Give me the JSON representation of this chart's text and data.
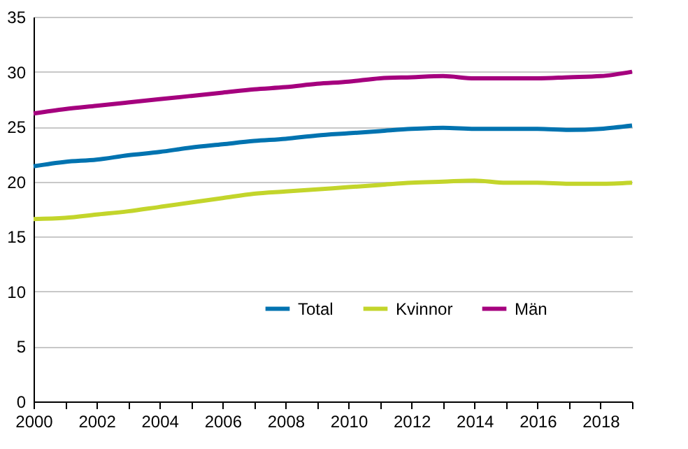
{
  "chart_data": {
    "type": "line",
    "x": [
      2000,
      2001,
      2002,
      2003,
      2004,
      2005,
      2006,
      2007,
      2008,
      2009,
      2010,
      2011,
      2012,
      2013,
      2014,
      2015,
      2016,
      2017,
      2018,
      2019
    ],
    "series": [
      {
        "name": "Total",
        "color": "#0073b0",
        "values": [
          21.4,
          21.8,
          22.0,
          22.4,
          22.7,
          23.1,
          23.4,
          23.7,
          23.9,
          24.2,
          24.4,
          24.6,
          24.8,
          24.9,
          24.8,
          24.8,
          24.8,
          24.7,
          24.8,
          25.1
        ]
      },
      {
        "name": "Kvinnor",
        "color": "#c3d52b",
        "values": [
          16.6,
          16.7,
          17.0,
          17.3,
          17.7,
          18.1,
          18.5,
          18.9,
          19.1,
          19.3,
          19.5,
          19.7,
          19.9,
          20.0,
          20.1,
          19.9,
          19.9,
          19.8,
          19.8,
          19.9
        ]
      },
      {
        "name": "Män",
        "color": "#a5007e",
        "values": [
          26.2,
          26.6,
          26.9,
          27.2,
          27.5,
          27.8,
          28.1,
          28.4,
          28.6,
          28.9,
          29.1,
          29.4,
          29.5,
          29.6,
          29.4,
          29.4,
          29.4,
          29.5,
          29.6,
          30.0
        ]
      }
    ],
    "xlim": [
      2000,
      2019
    ],
    "xticks": [
      2000,
      {
        "value": 2001,
        "label": null
      },
      2002,
      {
        "value": 2003,
        "label": null
      },
      2004,
      {
        "value": 2005,
        "label": null
      },
      2006,
      {
        "value": 2007,
        "label": null
      },
      2008,
      {
        "value": 2009,
        "label": null
      },
      2010,
      {
        "value": 2011,
        "label": null
      },
      2012,
      {
        "value": 2013,
        "label": null
      },
      2014,
      {
        "value": 2015,
        "label": null
      },
      2016,
      {
        "value": 2017,
        "label": null
      },
      2018,
      {
        "value": 2019,
        "label": null
      }
    ],
    "ylim": [
      0,
      35
    ],
    "yticks": [
      0,
      5,
      10,
      15,
      20,
      25,
      30,
      35
    ],
    "grid": "y",
    "legend": "bottom right",
    "marker": "none",
    "line_style": "solid"
  }
}
